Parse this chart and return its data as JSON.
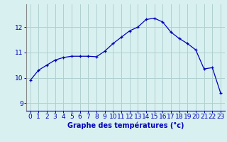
{
  "hours": [
    0,
    1,
    2,
    3,
    4,
    5,
    6,
    7,
    8,
    9,
    10,
    11,
    12,
    13,
    14,
    15,
    16,
    17,
    18,
    19,
    20,
    21,
    22,
    23
  ],
  "temps": [
    9.9,
    10.3,
    10.5,
    10.7,
    10.8,
    10.85,
    10.85,
    10.85,
    10.83,
    11.05,
    11.35,
    11.6,
    11.85,
    12.0,
    12.3,
    12.35,
    12.2,
    11.8,
    11.55,
    11.35,
    11.1,
    10.35,
    10.4,
    9.4
  ],
  "line_color": "#0000bb",
  "marker": "+",
  "bg_color": "#d8f0f0",
  "grid_color": "#b0d0d0",
  "axis_color": "#0000bb",
  "xlabel": "Graphe des températures (°c)",
  "xlabel_fontsize": 7,
  "tick_fontsize": 6.5,
  "ylabel_ticks": [
    9,
    10,
    11,
    12
  ],
  "ylim": [
    8.7,
    12.9
  ],
  "xlim": [
    -0.5,
    23.5
  ]
}
